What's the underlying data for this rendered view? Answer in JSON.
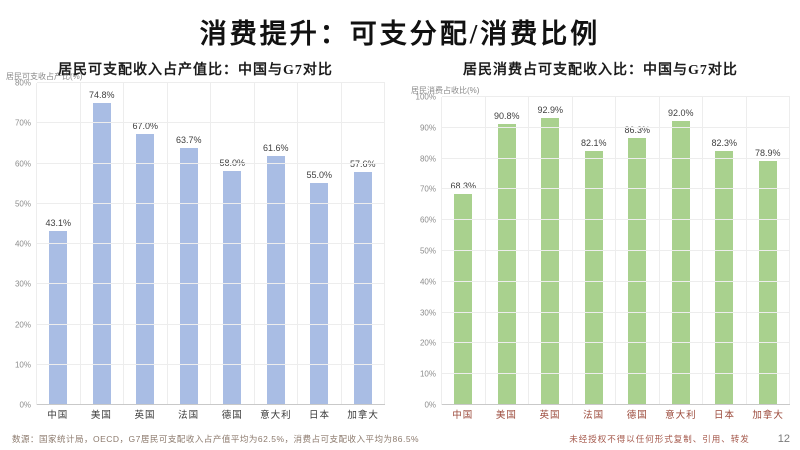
{
  "slide": {
    "title": "消费提升：可支分配/消费比例",
    "footnote_left": "数源：国家统计局，OECD，G7居民可支配收入占产值平均为62.5%，消费占可支配收入平均为86.5%",
    "footnote_right": "未经授权不得以任何形式复制、引用、转发",
    "page_number": "12"
  },
  "chart_data": [
    {
      "type": "bar",
      "title": "居民可支配收入占产值比：中国与G7对比",
      "ylabel": "居民可支收占产比(%)",
      "categories": [
        "中国",
        "美国",
        "英国",
        "法国",
        "德国",
        "意大利",
        "日本",
        "加拿大"
      ],
      "values": [
        43.1,
        74.8,
        67.0,
        63.7,
        58.0,
        61.6,
        55.0,
        57.6
      ],
      "value_labels": [
        "43.1%",
        "74.8%",
        "67.0%",
        "63.7%",
        "58.0%",
        "61.6%",
        "55.0%",
        "57.6%"
      ],
      "ylim": [
        0,
        80
      ],
      "ytick_step": 10,
      "grid": true,
      "legend": "none",
      "bar_color": "#a9bde4",
      "xlabel_color": "#3a3a3a"
    },
    {
      "type": "bar",
      "title": "居民消费占可支配收入比：中国与G7对比",
      "ylabel": "居民消费占收比(%)",
      "categories": [
        "中国",
        "美国",
        "英国",
        "法国",
        "德国",
        "意大利",
        "日本",
        "加拿大"
      ],
      "values": [
        68.3,
        90.8,
        92.9,
        82.1,
        86.3,
        92.0,
        82.3,
        78.9
      ],
      "value_labels": [
        "68.3%",
        "90.8%",
        "92.9%",
        "82.1%",
        "86.3%",
        "92.0%",
        "82.3%",
        "78.9%"
      ],
      "ylim": [
        0,
        100
      ],
      "ytick_step": 10,
      "grid": true,
      "legend": "none",
      "bar_color": "#a9d18e",
      "xlabel_color": "#9c4b3c"
    }
  ]
}
